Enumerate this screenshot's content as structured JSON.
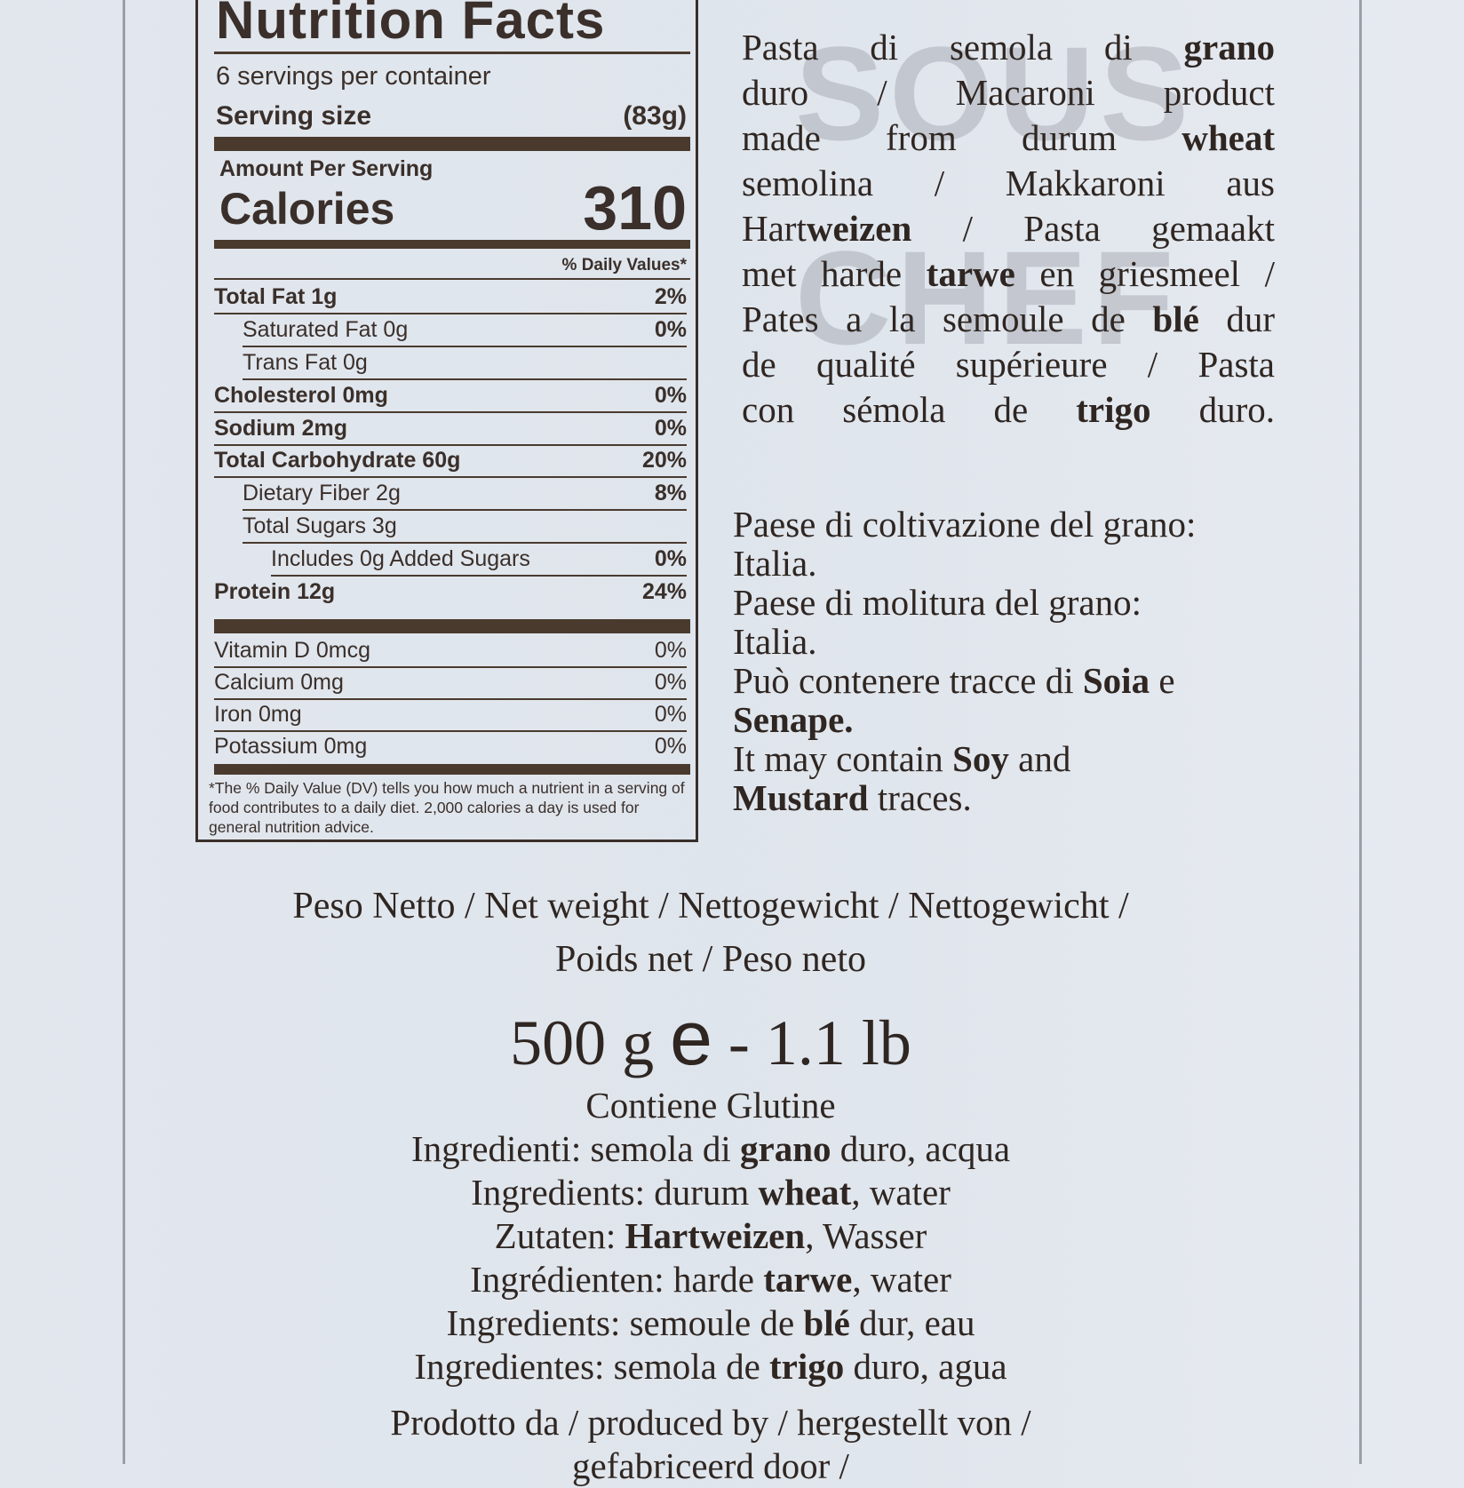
{
  "watermark": [
    "SOUS",
    "CHEF"
  ],
  "nutrition": {
    "title": "Nutrition Facts",
    "servings": "6 servings per container",
    "serving_size_label": "Serving size",
    "serving_size_value": "(83g)",
    "amount_per_serving": "Amount Per Serving",
    "calories_label": "Calories",
    "calories_value": "310",
    "dv_header": "% Daily Values*",
    "rows": [
      {
        "label": "Total Fat 1g",
        "pct": "2%",
        "indent": 0,
        "bold": true
      },
      {
        "label": "Saturated Fat 0g",
        "pct": "0%",
        "indent": 1,
        "bold": false
      },
      {
        "label": "Trans Fat 0g",
        "pct": "",
        "indent": 1,
        "bold": false
      },
      {
        "label": "Cholesterol 0mg",
        "pct": "0%",
        "indent": 0,
        "bold": true
      },
      {
        "label": "Sodium 2mg",
        "pct": "0%",
        "indent": 0,
        "bold": true
      },
      {
        "label": "Total Carbohydrate 60g",
        "pct": "20%",
        "indent": 0,
        "bold": true
      },
      {
        "label": "Dietary Fiber 2g",
        "pct": "8%",
        "indent": 1,
        "bold": false
      },
      {
        "label": "Total Sugars 3g",
        "pct": "",
        "indent": 1,
        "bold": false
      },
      {
        "label": "Includes 0g Added Sugars",
        "pct": "0%",
        "indent": 2,
        "bold": false
      },
      {
        "label": "Protein 12g",
        "pct": "24%",
        "indent": 0,
        "bold": true
      }
    ],
    "vitamins": [
      {
        "label": "Vitamin D 0mcg",
        "pct": "0%"
      },
      {
        "label": "Calcium 0mg",
        "pct": "0%"
      },
      {
        "label": "Iron 0mg",
        "pct": "0%"
      },
      {
        "label": "Potassium 0mg",
        "pct": "0%"
      }
    ],
    "footnote": "*The % Daily Value (DV) tells you how much a nutrient in a serving of food contributes to a daily diet. 2,000 calories a day is used for general nutrition advice."
  },
  "description": [
    [
      {
        "t": "Pasta di semola di "
      },
      {
        "t": "grano",
        "b": true
      }
    ],
    [
      {
        "t": "duro / Macaroni product"
      }
    ],
    [
      {
        "t": "made from durum "
      },
      {
        "t": "wheat",
        "b": true
      }
    ],
    [
      {
        "t": "semolina / Makkaroni aus"
      }
    ],
    [
      {
        "t": "Hart",
        "b": false
      },
      {
        "t": "weizen",
        "b": true
      },
      {
        "t": " / Pasta gemaakt"
      }
    ],
    [
      {
        "t": "met harde "
      },
      {
        "t": "tarwe",
        "b": true
      },
      {
        "t": " en griesmeel /"
      }
    ],
    [
      {
        "t": "Pates a la semoule de "
      },
      {
        "t": "blé",
        "b": true
      },
      {
        "t": " dur"
      }
    ],
    [
      {
        "t": "de qualité supérieure / Pasta"
      }
    ],
    [
      {
        "t": "con sémola de "
      },
      {
        "t": "trigo",
        "b": true
      },
      {
        "t": " duro."
      }
    ]
  ],
  "origin": [
    [
      {
        "t": "Paese di coltivazione del grano:"
      }
    ],
    [
      {
        "t": "Italia."
      }
    ],
    [
      {
        "t": "Paese di molitura del grano:"
      }
    ],
    [
      {
        "t": "Italia."
      }
    ],
    [
      {
        "t": "Può contenere tracce di "
      },
      {
        "t": "Soia",
        "b": true
      },
      {
        "t": " e"
      }
    ],
    [
      {
        "t": "Senape.",
        "b": true
      }
    ],
    [
      {
        "t": "It may contain "
      },
      {
        "t": "Soy",
        "b": true
      },
      {
        "t": " and"
      }
    ],
    [
      {
        "t": "Mustard",
        "b": true
      },
      {
        "t": " traces."
      }
    ]
  ],
  "net_weight": {
    "line1": "Peso Netto / Net weight / Nettogewicht / Nettogewicht /",
    "line2": "Poids net / Peso neto",
    "weight": "500 g",
    "e_mark": "e",
    "weight_lb": "- 1.1 lb"
  },
  "ingredients": [
    [
      {
        "t": "Contiene Glutine"
      }
    ],
    [
      {
        "t": "Ingredienti: semola di "
      },
      {
        "t": "grano",
        "b": true
      },
      {
        "t": " duro, acqua"
      }
    ],
    [
      {
        "t": "Ingredients: durum "
      },
      {
        "t": "wheat",
        "b": true
      },
      {
        "t": ", water"
      }
    ],
    [
      {
        "t": "Zutaten: "
      },
      {
        "t": "Hartweizen",
        "b": true
      },
      {
        "t": ", Wasser"
      }
    ],
    [
      {
        "t": "Ingrédienten: harde "
      },
      {
        "t": "tarwe",
        "b": true
      },
      {
        "t": ", water"
      }
    ],
    [
      {
        "t": "Ingredients: semoule de "
      },
      {
        "t": "blé",
        "b": true
      },
      {
        "t": " dur, eau"
      }
    ],
    [
      {
        "t": "Ingredientes: semola de "
      },
      {
        "t": "trigo",
        "b": true
      },
      {
        "t": " duro, agua"
      }
    ],
    [
      {
        "t": "Prodotto da / produced by / hergestellt von /"
      }
    ],
    [
      {
        "t": "gefabriceerd door /"
      }
    ]
  ],
  "colors": {
    "ink": "#3a2f2a",
    "rule": "#4a3a2e",
    "background": "#e0e6ed"
  }
}
